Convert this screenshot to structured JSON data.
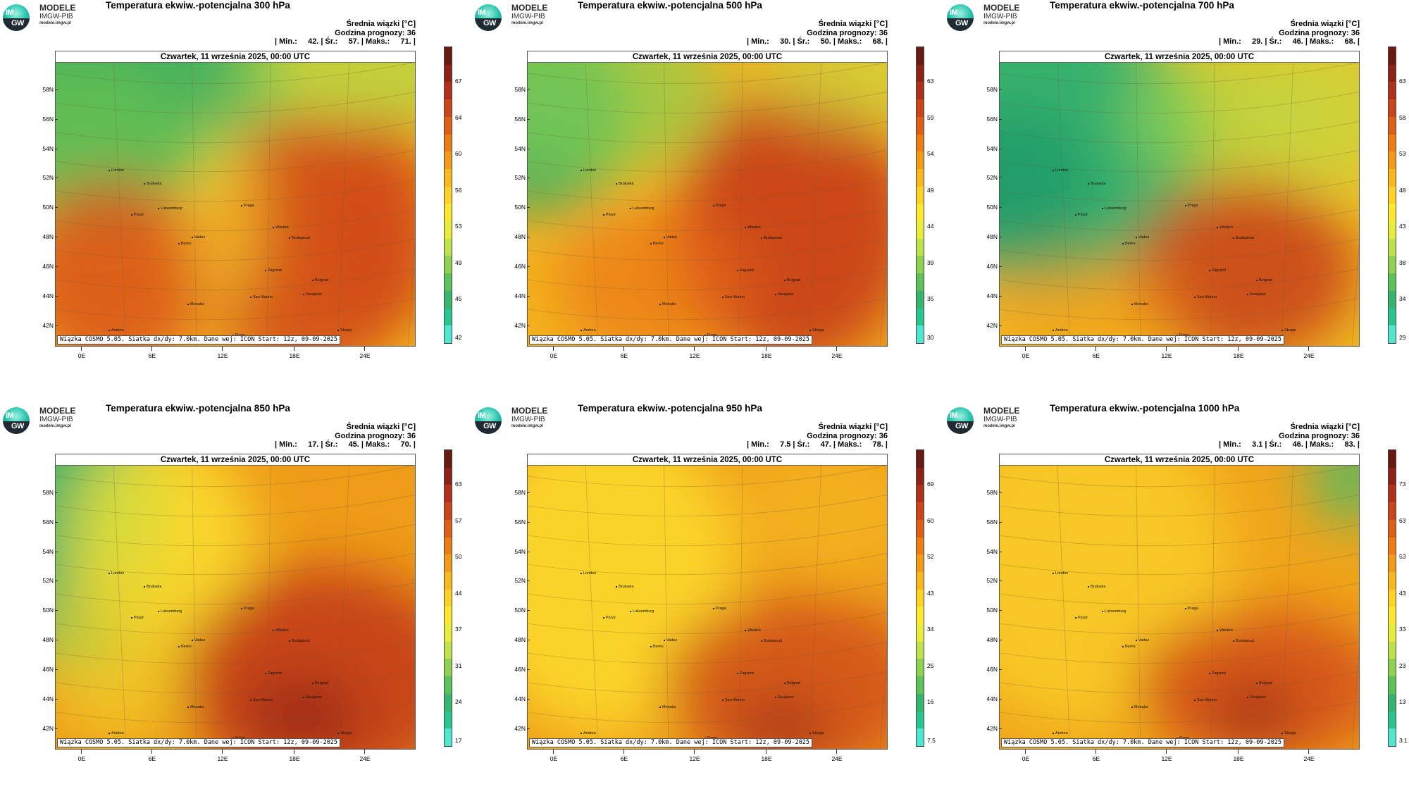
{
  "logo": {
    "badge_top": "IM",
    "badge_bottom": "GW",
    "name": "MODELE",
    "org": "IMGW-PIB",
    "url": "modele.imgw.pl"
  },
  "common": {
    "date_label": "Czwartek, 11 września 2025, 00:00 UTC",
    "footer": "Wiązka COSMO 5.05. Siatka dx/dy: 7.0km. Dane wej: ICON Start: 12z, 09-09-2025",
    "info_line1": "Średnia wiązki [°C]",
    "info_line2": "Godzina prognozy: 36",
    "lat_labels": [
      "58N",
      "56N",
      "54N",
      "52N",
      "50N",
      "48N",
      "46N",
      "44N",
      "42N"
    ],
    "lon_labels": [
      "0E",
      "6E",
      "12E",
      "18E",
      "24E"
    ],
    "cities": [
      "London",
      "Bruksela",
      "Paryż",
      "Luksemburg",
      "Praga",
      "Wiedeń",
      "Budapeszt",
      "Berno",
      "Vaduz",
      "Zagrzeb",
      "Belgrad",
      "San Marino",
      "Monako",
      "Sarajewo",
      "Andora",
      "Rzym",
      "Skopje"
    ]
  },
  "panels": [
    {
      "title": "Temperatura ekwiw.-potencjalna 300 hPa",
      "stats": "| Min.:     42. | Śr.:     57. | Maks.:     71. |",
      "cbar_ticks": [
        "67",
        "64",
        "60",
        "56",
        "53",
        "49",
        "45",
        "42"
      ]
    },
    {
      "title": "Temperatura ekwiw.-potencjalna 500 hPa",
      "stats": "| Min.:     30. | Śr.:     50. | Maks.:     68. |",
      "cbar_ticks": [
        "63",
        "59",
        "54",
        "49",
        "44",
        "39",
        "35",
        "30"
      ]
    },
    {
      "title": "Temperatura ekwiw.-potencjalna 700 hPa",
      "stats": "| Min.:     29. | Śr.:     46. | Maks.:     68. |",
      "cbar_ticks": [
        "63",
        "58",
        "53",
        "48",
        "43",
        "38",
        "34",
        "29"
      ]
    },
    {
      "title": "Temperatura ekwiw.-potencjalna 850 hPa",
      "stats": "| Min.:     17. | Śr.:     45. | Maks.:     70. |",
      "cbar_ticks": [
        "63",
        "57",
        "50",
        "44",
        "37",
        "31",
        "24",
        "17"
      ]
    },
    {
      "title": "Temperatura ekwiw.-potencjalna 950 hPa",
      "stats": "| Min.:     7.5 | Śr.:     47. | Maks.:     78. |",
      "cbar_ticks": [
        "69",
        "60",
        "52",
        "43",
        "34",
        "25",
        "16",
        "7.5"
      ]
    },
    {
      "title": "Temperatura ekwiw.-potencjalna 1000 hPa",
      "stats": "| Min.:     3.1 | Śr.:     46. | Maks.:     83. |",
      "cbar_ticks": [
        "73",
        "63",
        "53",
        "43",
        "33",
        "23",
        "13",
        "3.1"
      ]
    }
  ],
  "colors": {
    "scale": [
      "#6b1a12",
      "#8e2214",
      "#b0301a",
      "#cc4418",
      "#e05f16",
      "#ee7c14",
      "#f59a16",
      "#fab81c",
      "#ffd224",
      "#fde82e",
      "#e8ec3a",
      "#bde24a",
      "#8ed250",
      "#5cc25a",
      "#35b56e",
      "#2ac690",
      "#4de8cf"
    ]
  }
}
